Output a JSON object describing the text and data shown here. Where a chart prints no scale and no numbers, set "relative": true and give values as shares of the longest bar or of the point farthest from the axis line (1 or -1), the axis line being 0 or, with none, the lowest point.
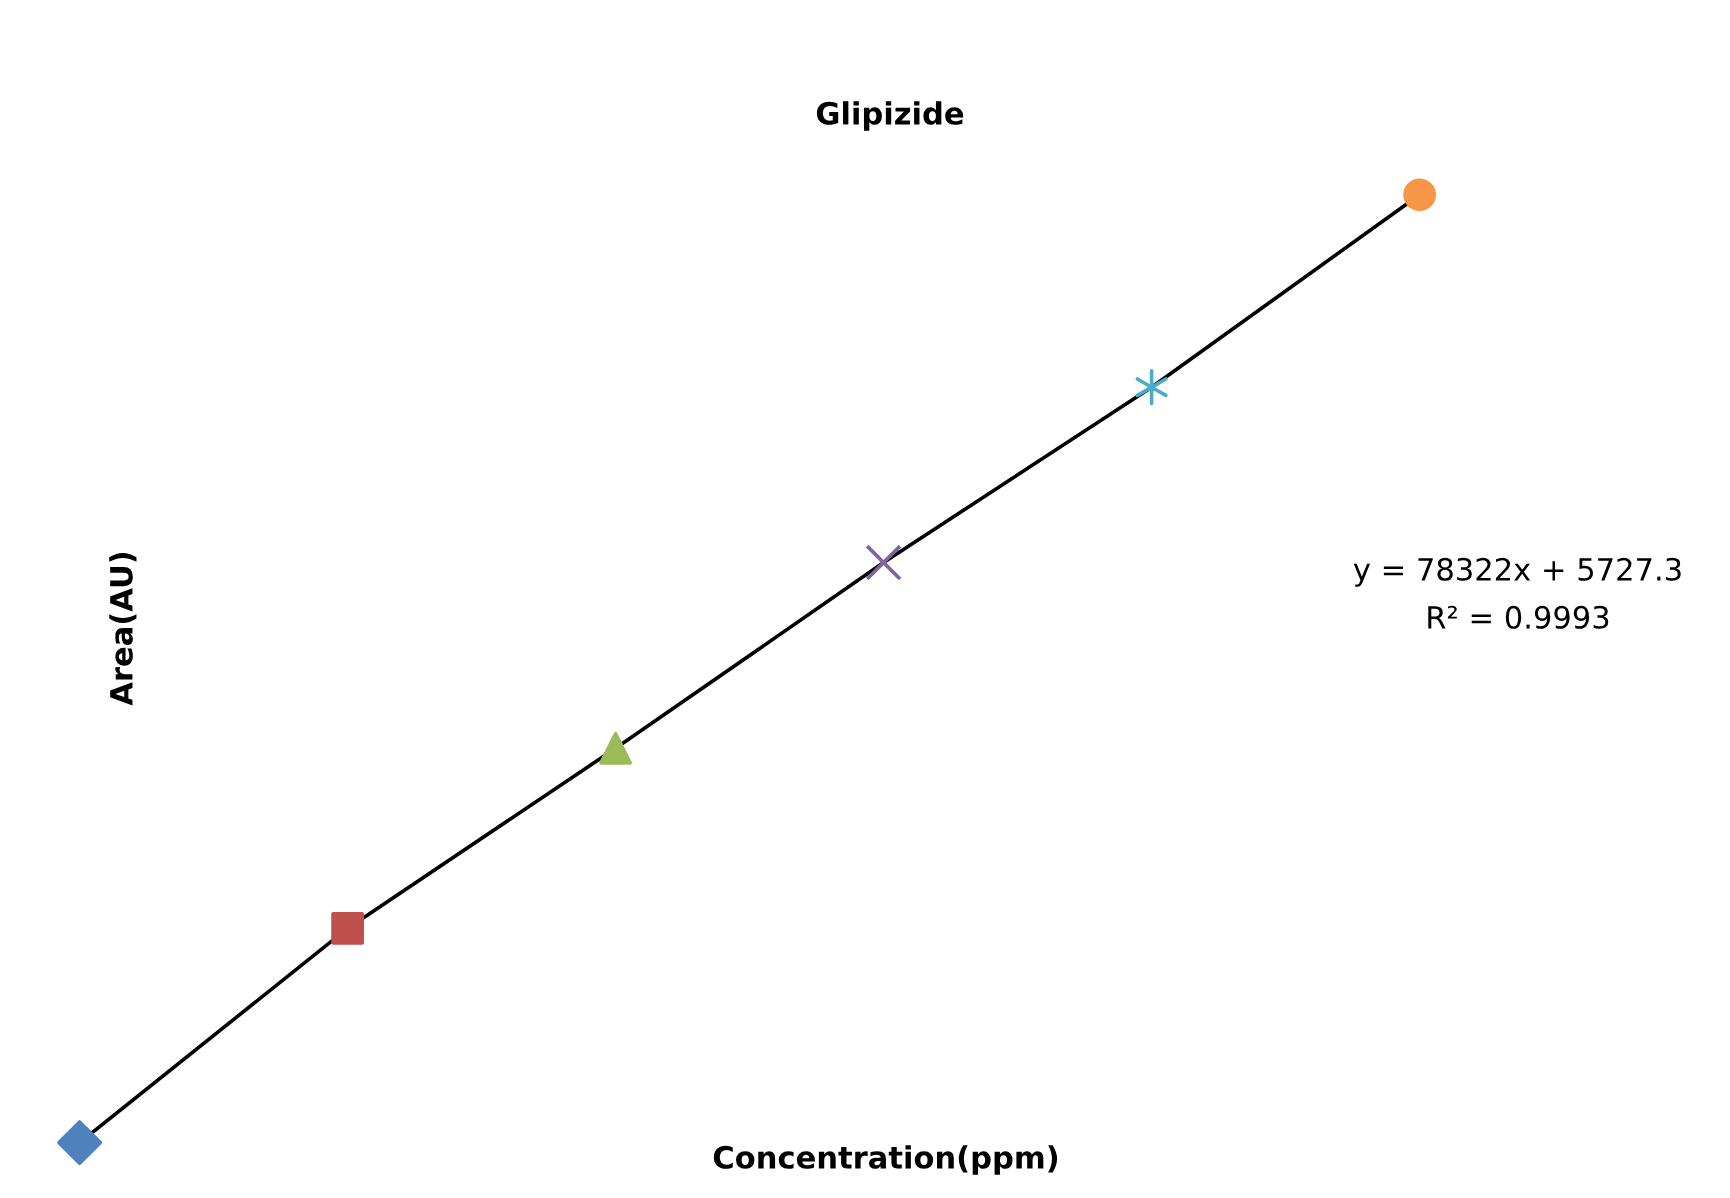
{
  "chart_data": {
    "type": "line",
    "title": "Glipizide",
    "xlabel": "Concentration(ppm)",
    "ylabel": "Area(AU)",
    "relative": true,
    "categories": [
      null,
      null,
      null,
      null,
      null,
      null
    ],
    "series": [
      {
        "color": "#000000",
        "values": [
          0,
          0.226,
          0.416,
          0.612,
          0.797,
          1
        ],
        "colors": [
          "#4f81bd",
          "#c0504d",
          "#9bbb59",
          "#8064a2",
          "#4bacc6",
          "#f79646"
        ],
        "marker": "diamond"
      }
    ],
    "annotations": [
      "y = 78322x + 5727.3",
      "R² = 0.9993"
    ],
    "grid": false,
    "legend": false
  }
}
